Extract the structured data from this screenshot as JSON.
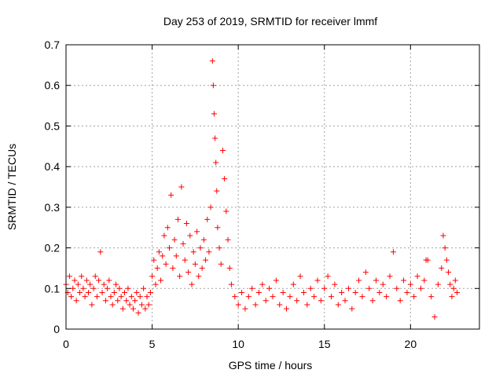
{
  "chart_data": {
    "type": "scatter",
    "title": "Day 253 of 2019, SRMTID for receiver lmmf",
    "xlabel": "GPS time / hours",
    "ylabel": "SRMTID / TECUs",
    "xlim": [
      0,
      24
    ],
    "ylim": [
      0,
      0.7
    ],
    "xticks": [
      0,
      5,
      10,
      15,
      20
    ],
    "yticks": [
      0,
      0.1,
      0.2,
      0.3,
      0.4,
      0.5,
      0.6,
      0.7
    ],
    "xtick_labels": [
      "0",
      "5",
      "10",
      "15",
      "20"
    ],
    "ytick_labels": [
      "0",
      "0.1",
      "0.2",
      "0.3",
      "0.4",
      "0.5",
      "0.6",
      "0.7"
    ],
    "grid": true,
    "marker": "+",
    "color": "#ff0000",
    "series": [
      {
        "name": "SRMTID",
        "points": [
          [
            0.0,
            0.11
          ],
          [
            0.1,
            0.09
          ],
          [
            0.2,
            0.13
          ],
          [
            0.3,
            0.08
          ],
          [
            0.4,
            0.1
          ],
          [
            0.5,
            0.12
          ],
          [
            0.6,
            0.07
          ],
          [
            0.7,
            0.11
          ],
          [
            0.8,
            0.09
          ],
          [
            0.9,
            0.13
          ],
          [
            1.0,
            0.1
          ],
          [
            1.1,
            0.08
          ],
          [
            1.2,
            0.12
          ],
          [
            1.3,
            0.09
          ],
          [
            1.4,
            0.11
          ],
          [
            1.5,
            0.06
          ],
          [
            1.6,
            0.1
          ],
          [
            1.7,
            0.13
          ],
          [
            1.8,
            0.08
          ],
          [
            1.9,
            0.12
          ],
          [
            2.0,
            0.19
          ],
          [
            2.1,
            0.09
          ],
          [
            2.2,
            0.11
          ],
          [
            2.3,
            0.07
          ],
          [
            2.4,
            0.1
          ],
          [
            2.5,
            0.12
          ],
          [
            2.6,
            0.08
          ],
          [
            2.7,
            0.06
          ],
          [
            2.8,
            0.09
          ],
          [
            2.9,
            0.11
          ],
          [
            3.0,
            0.07
          ],
          [
            3.1,
            0.1
          ],
          [
            3.2,
            0.08
          ],
          [
            3.3,
            0.05
          ],
          [
            3.4,
            0.09
          ],
          [
            3.5,
            0.07
          ],
          [
            3.6,
            0.1
          ],
          [
            3.7,
            0.06
          ],
          [
            3.8,
            0.08
          ],
          [
            3.9,
            0.05
          ],
          [
            4.0,
            0.07
          ],
          [
            4.1,
            0.09
          ],
          [
            4.2,
            0.04
          ],
          [
            4.3,
            0.08
          ],
          [
            4.4,
            0.06
          ],
          [
            4.5,
            0.1
          ],
          [
            4.6,
            0.05
          ],
          [
            4.7,
            0.08
          ],
          [
            4.8,
            0.06
          ],
          [
            4.9,
            0.09
          ],
          [
            5.0,
            0.13
          ],
          [
            5.1,
            0.17
          ],
          [
            5.2,
            0.11
          ],
          [
            5.3,
            0.15
          ],
          [
            5.4,
            0.19
          ],
          [
            5.5,
            0.12
          ],
          [
            5.6,
            0.18
          ],
          [
            5.7,
            0.23
          ],
          [
            5.8,
            0.16
          ],
          [
            5.9,
            0.25
          ],
          [
            6.0,
            0.2
          ],
          [
            6.1,
            0.33
          ],
          [
            6.2,
            0.15
          ],
          [
            6.3,
            0.22
          ],
          [
            6.4,
            0.18
          ],
          [
            6.5,
            0.27
          ],
          [
            6.6,
            0.13
          ],
          [
            6.7,
            0.35
          ],
          [
            6.8,
            0.21
          ],
          [
            6.9,
            0.17
          ],
          [
            7.0,
            0.26
          ],
          [
            7.1,
            0.14
          ],
          [
            7.2,
            0.23
          ],
          [
            7.3,
            0.11
          ],
          [
            7.4,
            0.19
          ],
          [
            7.5,
            0.16
          ],
          [
            7.6,
            0.24
          ],
          [
            7.7,
            0.13
          ],
          [
            7.8,
            0.2
          ],
          [
            7.9,
            0.15
          ],
          [
            8.0,
            0.22
          ],
          [
            8.1,
            0.17
          ],
          [
            8.2,
            0.27
          ],
          [
            8.3,
            0.19
          ],
          [
            8.4,
            0.3
          ],
          [
            8.5,
            0.66
          ],
          [
            8.55,
            0.6
          ],
          [
            8.6,
            0.53
          ],
          [
            8.65,
            0.47
          ],
          [
            8.7,
            0.41
          ],
          [
            8.75,
            0.34
          ],
          [
            8.8,
            0.25
          ],
          [
            8.9,
            0.2
          ],
          [
            9.0,
            0.16
          ],
          [
            9.1,
            0.44
          ],
          [
            9.2,
            0.37
          ],
          [
            9.3,
            0.29
          ],
          [
            9.4,
            0.22
          ],
          [
            9.5,
            0.15
          ],
          [
            9.6,
            0.11
          ],
          [
            9.8,
            0.08
          ],
          [
            10.0,
            0.06
          ],
          [
            10.2,
            0.09
          ],
          [
            10.4,
            0.05
          ],
          [
            10.6,
            0.08
          ],
          [
            10.8,
            0.1
          ],
          [
            11.0,
            0.06
          ],
          [
            11.2,
            0.09
          ],
          [
            11.4,
            0.11
          ],
          [
            11.6,
            0.07
          ],
          [
            11.8,
            0.1
          ],
          [
            12.0,
            0.08
          ],
          [
            12.2,
            0.12
          ],
          [
            12.4,
            0.06
          ],
          [
            12.6,
            0.09
          ],
          [
            12.8,
            0.05
          ],
          [
            13.0,
            0.08
          ],
          [
            13.2,
            0.11
          ],
          [
            13.4,
            0.07
          ],
          [
            13.6,
            0.13
          ],
          [
            13.8,
            0.09
          ],
          [
            14.0,
            0.06
          ],
          [
            14.2,
            0.1
          ],
          [
            14.4,
            0.08
          ],
          [
            14.6,
            0.12
          ],
          [
            14.8,
            0.07
          ],
          [
            15.0,
            0.1
          ],
          [
            15.2,
            0.13
          ],
          [
            15.4,
            0.08
          ],
          [
            15.6,
            0.11
          ],
          [
            15.8,
            0.06
          ],
          [
            16.0,
            0.09
          ],
          [
            16.2,
            0.07
          ],
          [
            16.4,
            0.1
          ],
          [
            16.6,
            0.05
          ],
          [
            16.8,
            0.09
          ],
          [
            17.0,
            0.12
          ],
          [
            17.2,
            0.08
          ],
          [
            17.4,
            0.14
          ],
          [
            17.6,
            0.1
          ],
          [
            17.8,
            0.07
          ],
          [
            18.0,
            0.12
          ],
          [
            18.2,
            0.09
          ],
          [
            18.4,
            0.11
          ],
          [
            18.6,
            0.08
          ],
          [
            18.8,
            0.13
          ],
          [
            19.0,
            0.19
          ],
          [
            19.2,
            0.1
          ],
          [
            19.4,
            0.07
          ],
          [
            19.6,
            0.12
          ],
          [
            19.8,
            0.09
          ],
          [
            20.0,
            0.11
          ],
          [
            20.2,
            0.08
          ],
          [
            20.4,
            0.13
          ],
          [
            20.6,
            0.1
          ],
          [
            20.8,
            0.12
          ],
          [
            20.9,
            0.17
          ],
          [
            21.0,
            0.17
          ],
          [
            21.2,
            0.08
          ],
          [
            21.4,
            0.03
          ],
          [
            21.6,
            0.11
          ],
          [
            21.8,
            0.15
          ],
          [
            21.9,
            0.23
          ],
          [
            22.0,
            0.2
          ],
          [
            22.1,
            0.17
          ],
          [
            22.2,
            0.14
          ],
          [
            22.3,
            0.11
          ],
          [
            22.4,
            0.08
          ],
          [
            22.5,
            0.1
          ],
          [
            22.6,
            0.12
          ],
          [
            22.7,
            0.09
          ]
        ]
      }
    ]
  }
}
